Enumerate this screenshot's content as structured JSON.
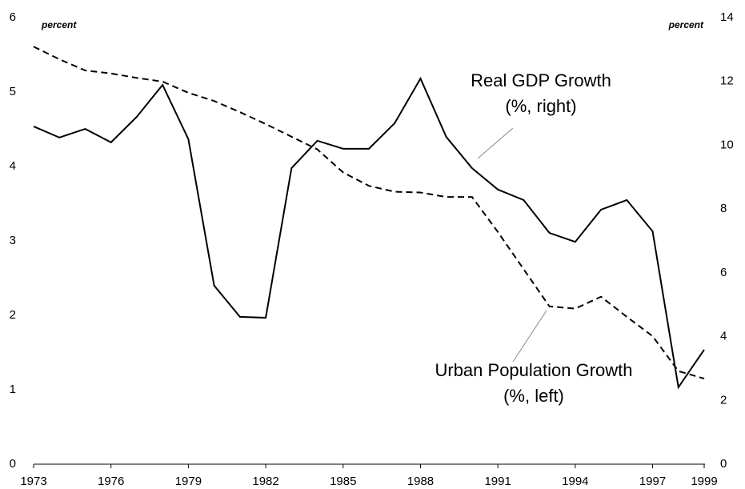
{
  "chart_data": {
    "type": "line",
    "x": [
      1973,
      1974,
      1975,
      1976,
      1977,
      1978,
      1979,
      1980,
      1981,
      1982,
      1983,
      1984,
      1985,
      1986,
      1987,
      1988,
      1989,
      1990,
      1991,
      1992,
      1993,
      1994,
      1995,
      1996,
      1997,
      1998,
      1999
    ],
    "series": [
      {
        "name": "Real GDP Growth (%, right)",
        "color": "#000000",
        "dash": false,
        "axis": "y2",
        "values": [
          10.59,
          10.24,
          10.51,
          10.09,
          10.89,
          11.89,
          10.19,
          5.6,
          4.62,
          4.59,
          9.28,
          10.14,
          9.89,
          9.89,
          10.69,
          12.09,
          10.26,
          9.28,
          8.61,
          8.28,
          7.25,
          6.97,
          7.98,
          8.28,
          7.3,
          2.41,
          3.59
        ]
      },
      {
        "name": "Urban Population Growth (%, left)",
        "color": "#000000",
        "dash": true,
        "values": [
          5.61,
          5.44,
          5.29,
          5.25,
          5.19,
          5.14,
          4.99,
          4.88,
          4.73,
          4.57,
          4.4,
          4.23,
          3.92,
          3.74,
          3.66,
          3.65,
          3.59,
          3.59,
          3.12,
          2.62,
          2.12,
          2.09,
          2.25,
          1.98,
          1.72,
          1.25,
          1.15
        ]
      }
    ],
    "xlim": [
      1973,
      1999
    ],
    "xticks": [
      1973,
      1976,
      1979,
      1982,
      1985,
      1988,
      1991,
      1994,
      1997,
      1999
    ],
    "ylim": [
      0,
      6
    ],
    "yticks": [
      0,
      1,
      2,
      3,
      4,
      5,
      6
    ],
    "y2lim": [
      0,
      14
    ],
    "y2ticks": [
      0,
      2,
      4,
      6,
      8,
      10,
      12,
      14
    ],
    "annotations": [
      "percent",
      "percent",
      "Real GDP Growth",
      "(%, right)",
      "Urban Population Growth",
      "(%, left)"
    ]
  }
}
